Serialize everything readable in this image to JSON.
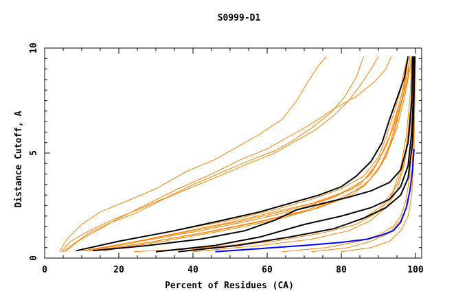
{
  "chart_data": {
    "type": "line",
    "title": "S0999-D1",
    "xlabel": "Percent of Residues (CA)",
    "ylabel": "Distance Cutoff, A",
    "xlim": [
      0,
      100
    ],
    "ylim": [
      0,
      10
    ],
    "x_ticks": [
      "0",
      "20",
      "40",
      "60",
      "80",
      "100"
    ],
    "y_ticks": [
      "0",
      "5",
      "10"
    ],
    "grid": false,
    "legend": "none",
    "colors": {
      "orange": "#ff8000",
      "black": "#000000",
      "blue": "#0000ff"
    },
    "series": [
      {
        "color": "#ff8000",
        "points": [
          [
            4,
            0.3
          ],
          [
            6,
            0.9
          ],
          [
            10,
            1.6
          ],
          [
            15,
            2.2
          ],
          [
            22,
            2.7
          ],
          [
            30,
            3.3
          ],
          [
            38,
            4.1
          ],
          [
            46,
            4.7
          ],
          [
            52,
            5.3
          ],
          [
            58,
            5.9
          ],
          [
            64,
            6.6
          ],
          [
            68,
            7.5
          ],
          [
            71,
            8.4
          ],
          [
            74,
            9.2
          ],
          [
            76,
            9.6
          ]
        ]
      },
      {
        "color": "#ff8000",
        "points": [
          [
            4.5,
            0.3
          ],
          [
            7,
            0.8
          ],
          [
            12,
            1.3
          ],
          [
            18,
            1.8
          ],
          [
            25,
            2.3
          ],
          [
            33,
            2.9
          ],
          [
            40,
            3.5
          ],
          [
            48,
            4.1
          ],
          [
            56,
            4.7
          ],
          [
            62,
            5.1
          ],
          [
            67,
            5.6
          ],
          [
            72,
            6.2
          ],
          [
            77,
            6.9
          ],
          [
            81,
            7.7
          ],
          [
            84,
            8.6
          ],
          [
            86,
            9.6
          ]
        ]
      },
      {
        "color": "#ff8000",
        "points": [
          [
            5,
            0.3
          ],
          [
            8,
            0.7
          ],
          [
            12,
            1.2
          ],
          [
            18,
            1.7
          ],
          [
            24,
            2.1
          ],
          [
            32,
            2.8
          ],
          [
            40,
            3.4
          ],
          [
            47,
            3.9
          ],
          [
            55,
            4.5
          ],
          [
            62,
            5.0
          ],
          [
            68,
            5.6
          ],
          [
            73,
            6.1
          ],
          [
            78,
            6.8
          ],
          [
            82,
            7.5
          ],
          [
            85,
            8.2
          ],
          [
            88,
            9.0
          ],
          [
            90,
            9.6
          ]
        ]
      },
      {
        "color": "#ff8000",
        "points": [
          [
            5.5,
            0.3
          ],
          [
            9,
            0.8
          ],
          [
            14,
            1.3
          ],
          [
            20,
            1.9
          ],
          [
            28,
            2.6
          ],
          [
            36,
            3.3
          ],
          [
            45,
            4.0
          ],
          [
            53,
            4.7
          ],
          [
            60,
            5.2
          ],
          [
            66,
            5.8
          ],
          [
            72,
            6.4
          ],
          [
            78,
            7.1
          ],
          [
            84,
            7.7
          ],
          [
            89,
            8.4
          ],
          [
            92,
            9.0
          ],
          [
            93.5,
            9.6
          ]
        ]
      },
      {
        "color": "#ff8000",
        "points": [
          [
            8.5,
            0.35
          ],
          [
            20,
            0.8
          ],
          [
            35,
            1.3
          ],
          [
            50,
            1.8
          ],
          [
            62,
            2.3
          ],
          [
            72,
            2.8
          ],
          [
            80,
            3.3
          ],
          [
            86,
            3.9
          ],
          [
            90,
            4.8
          ],
          [
            92,
            5.7
          ],
          [
            94,
            6.8
          ],
          [
            96,
            8.0
          ],
          [
            97,
            9.0
          ],
          [
            98,
            9.6
          ]
        ]
      },
      {
        "color": "#ff8000",
        "points": [
          [
            10,
            0.35
          ],
          [
            22,
            0.7
          ],
          [
            36,
            1.2
          ],
          [
            50,
            1.7
          ],
          [
            62,
            2.2
          ],
          [
            72,
            2.6
          ],
          [
            80,
            3.1
          ],
          [
            86,
            3.7
          ],
          [
            90,
            4.6
          ],
          [
            93,
            5.8
          ],
          [
            95,
            7.0
          ],
          [
            97,
            8.2
          ],
          [
            98,
            9.6
          ]
        ]
      },
      {
        "color": "#ff8000",
        "points": [
          [
            11,
            0.35
          ],
          [
            25,
            0.8
          ],
          [
            40,
            1.3
          ],
          [
            54,
            1.8
          ],
          [
            66,
            2.3
          ],
          [
            76,
            2.8
          ],
          [
            83,
            3.3
          ],
          [
            88,
            4.0
          ],
          [
            91,
            5.0
          ],
          [
            94,
            6.2
          ],
          [
            96,
            7.6
          ],
          [
            97.5,
            8.8
          ],
          [
            98,
            9.6
          ]
        ]
      },
      {
        "color": "#ff8000",
        "points": [
          [
            12,
            0.35
          ],
          [
            26,
            0.8
          ],
          [
            42,
            1.3
          ],
          [
            56,
            1.8
          ],
          [
            68,
            2.3
          ],
          [
            78,
            2.9
          ],
          [
            85,
            3.5
          ],
          [
            89,
            4.3
          ],
          [
            92,
            5.3
          ],
          [
            95,
            6.7
          ],
          [
            97,
            8.0
          ],
          [
            98,
            9.6
          ]
        ]
      },
      {
        "color": "#ff8000",
        "points": [
          [
            13,
            0.35
          ],
          [
            28,
            0.75
          ],
          [
            44,
            1.25
          ],
          [
            58,
            1.75
          ],
          [
            70,
            2.25
          ],
          [
            79,
            2.8
          ],
          [
            86,
            3.4
          ],
          [
            90,
            4.2
          ],
          [
            93,
            5.4
          ],
          [
            95.5,
            6.9
          ],
          [
            97.5,
            8.3
          ],
          [
            98.5,
            9.6
          ]
        ]
      },
      {
        "color": "#ff8000",
        "points": [
          [
            14,
            0.35
          ],
          [
            30,
            0.8
          ],
          [
            46,
            1.3
          ],
          [
            60,
            1.8
          ],
          [
            72,
            2.3
          ],
          [
            81,
            2.9
          ],
          [
            87,
            3.6
          ],
          [
            91,
            4.5
          ],
          [
            94,
            5.8
          ],
          [
            96,
            7.2
          ],
          [
            98,
            8.6
          ],
          [
            98.5,
            9.6
          ]
        ]
      },
      {
        "color": "#ff8000",
        "points": [
          [
            16,
            0.35
          ],
          [
            32,
            0.8
          ],
          [
            48,
            1.3
          ],
          [
            62,
            1.8
          ],
          [
            74,
            2.4
          ],
          [
            83,
            3.0
          ],
          [
            88,
            3.8
          ],
          [
            92,
            4.8
          ],
          [
            95,
            6.2
          ],
          [
            97,
            7.6
          ],
          [
            98.5,
            9.0
          ],
          [
            99,
            9.6
          ]
        ]
      },
      {
        "color": "#ff8000",
        "points": [
          [
            24,
            0.3
          ],
          [
            45,
            0.5
          ],
          [
            62,
            0.8
          ],
          [
            75,
            1.2
          ],
          [
            84,
            1.6
          ],
          [
            90,
            2.2
          ],
          [
            93,
            2.8
          ],
          [
            95,
            3.5
          ],
          [
            97,
            4.6
          ],
          [
            98,
            6.0
          ],
          [
            99,
            7.8
          ],
          [
            99.2,
            9.6
          ]
        ]
      },
      {
        "color": "#ff8000",
        "points": [
          [
            30,
            0.3
          ],
          [
            50,
            0.6
          ],
          [
            66,
            1.0
          ],
          [
            78,
            1.4
          ],
          [
            86,
            1.9
          ],
          [
            91,
            2.5
          ],
          [
            94,
            3.2
          ],
          [
            96,
            4.3
          ],
          [
            97.5,
            5.8
          ],
          [
            98.5,
            7.6
          ],
          [
            99,
            9.6
          ]
        ]
      },
      {
        "color": "#ff8000",
        "points": [
          [
            40,
            0.3
          ],
          [
            58,
            0.6
          ],
          [
            72,
            0.9
          ],
          [
            82,
            1.3
          ],
          [
            88,
            1.8
          ],
          [
            92,
            2.4
          ],
          [
            95,
            3.2
          ],
          [
            97,
            4.5
          ],
          [
            98.5,
            6.0
          ],
          [
            99.2,
            8.0
          ],
          [
            99.4,
            9.6
          ]
        ]
      },
      {
        "color": "#ff8000",
        "points": [
          [
            64,
            0.3
          ],
          [
            76,
            0.5
          ],
          [
            85,
            0.8
          ],
          [
            90,
            1.1
          ],
          [
            94,
            1.5
          ],
          [
            96,
            2.0
          ],
          [
            97.5,
            2.8
          ],
          [
            98.5,
            4.0
          ],
          [
            99.2,
            5.8
          ],
          [
            99.6,
            7.8
          ],
          [
            99.8,
            9.6
          ]
        ]
      },
      {
        "color": "#ff8000",
        "points": [
          [
            72,
            0.3
          ],
          [
            82,
            0.5
          ],
          [
            88,
            0.8
          ],
          [
            93,
            1.2
          ],
          [
            96,
            1.8
          ],
          [
            98,
            2.6
          ],
          [
            99,
            4.0
          ],
          [
            99.5,
            6.0
          ],
          [
            99.8,
            8.0
          ],
          [
            100,
            9.6
          ]
        ]
      },
      {
        "color": "#ff8000",
        "points": [
          [
            80,
            0.3
          ],
          [
            88,
            0.5
          ],
          [
            93,
            0.8
          ],
          [
            96,
            1.3
          ],
          [
            98,
            2.0
          ],
          [
            99,
            3.0
          ],
          [
            99.6,
            5.0
          ],
          [
            99.8,
            7.5
          ],
          [
            100,
            9.6
          ]
        ]
      },
      {
        "color": "#000000",
        "points": [
          [
            8.5,
            0.35
          ],
          [
            20,
            0.8
          ],
          [
            35,
            1.3
          ],
          [
            48,
            1.8
          ],
          [
            58,
            2.2
          ],
          [
            66,
            2.6
          ],
          [
            74,
            3.0
          ],
          [
            80,
            3.4
          ],
          [
            84,
            3.9
          ],
          [
            88,
            4.6
          ],
          [
            91,
            5.5
          ],
          [
            93,
            6.6
          ],
          [
            95,
            7.6
          ],
          [
            97,
            8.6
          ],
          [
            98,
            9.6
          ]
        ]
      },
      {
        "color": "#000000",
        "points": [
          [
            13,
            0.35
          ],
          [
            28,
            0.6
          ],
          [
            42,
            0.9
          ],
          [
            54,
            1.3
          ],
          [
            62,
            1.8
          ],
          [
            68,
            2.3
          ],
          [
            75,
            2.6
          ],
          [
            82,
            2.9
          ],
          [
            88,
            3.2
          ],
          [
            93,
            3.6
          ],
          [
            96,
            4.2
          ],
          [
            98,
            5.5
          ],
          [
            99,
            7.5
          ],
          [
            99.2,
            9.6
          ]
        ]
      },
      {
        "color": "#000000",
        "points": [
          [
            30,
            0.3
          ],
          [
            46,
            0.6
          ],
          [
            58,
            1.0
          ],
          [
            70,
            1.6
          ],
          [
            80,
            2.0
          ],
          [
            88,
            2.4
          ],
          [
            93,
            2.8
          ],
          [
            96,
            3.4
          ],
          [
            98,
            4.4
          ],
          [
            99,
            6.0
          ],
          [
            99.5,
            8.0
          ],
          [
            99.6,
            9.6
          ]
        ]
      },
      {
        "color": "#000000",
        "points": [
          [
            36,
            0.3
          ],
          [
            52,
            0.6
          ],
          [
            66,
            1.0
          ],
          [
            78,
            1.4
          ],
          [
            86,
            1.9
          ],
          [
            92,
            2.4
          ],
          [
            96,
            3.0
          ],
          [
            98,
            3.8
          ],
          [
            99.2,
            5.5
          ],
          [
            99.6,
            7.8
          ],
          [
            99.8,
            9.6
          ]
        ]
      },
      {
        "color": "#0000ff",
        "points": [
          [
            46,
            0.3
          ],
          [
            58,
            0.45
          ],
          [
            70,
            0.6
          ],
          [
            80,
            0.75
          ],
          [
            87,
            0.9
          ],
          [
            91,
            1.1
          ],
          [
            94,
            1.3
          ],
          [
            96,
            1.7
          ],
          [
            97.5,
            2.4
          ],
          [
            98.5,
            3.2
          ],
          [
            99.2,
            4.2
          ],
          [
            99.6,
            5.2
          ]
        ]
      }
    ]
  }
}
